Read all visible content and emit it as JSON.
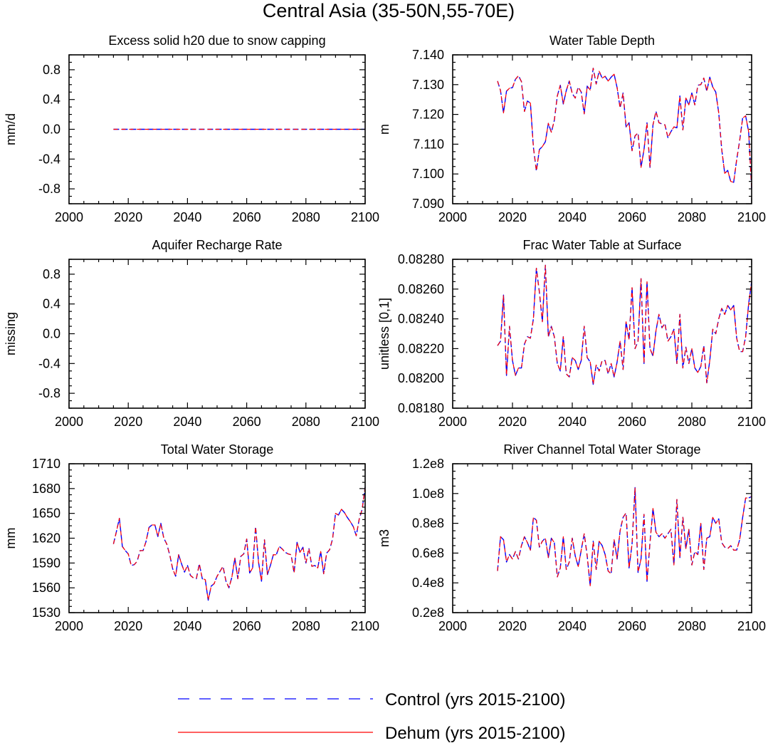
{
  "figure": {
    "title": "Central Asia (35-50N,55-70E)"
  },
  "legend": {
    "placement": "bottom-center",
    "items": [
      {
        "label": "Control (yrs 2015-2100)",
        "color": "#0000ff",
        "style": "dashed"
      },
      {
        "label": "Dehum (yrs 2015-2100)",
        "color": "#ff0000",
        "style": "solid"
      }
    ]
  },
  "chart_data": [
    {
      "type": "line",
      "title": "Excess solid h20 due to snow capping",
      "ylabel": "mm/d",
      "xlim": [
        2000,
        2100
      ],
      "ylim": [
        -1.0,
        1.0
      ],
      "xticks": [
        2000,
        2020,
        2040,
        2060,
        2080,
        2100
      ],
      "yticks": [
        -0.8,
        -0.4,
        0.0,
        0.4,
        0.8
      ],
      "ytick_labels": [
        "-0.8",
        "-0.4",
        "0.0",
        "0.4",
        "0.8"
      ],
      "x": [
        2015,
        2100
      ],
      "series": [
        {
          "name": "Control (yrs 2015-2100)",
          "values": [
            0,
            0
          ]
        },
        {
          "name": "Dehum (yrs 2015-2100)",
          "values": [
            0,
            0
          ]
        }
      ]
    },
    {
      "type": "line",
      "title": "Water Table Depth",
      "ylabel": "m",
      "xlim": [
        2000,
        2100
      ],
      "ylim": [
        7.09,
        7.14
      ],
      "xticks": [
        2000,
        2020,
        2040,
        2060,
        2080,
        2100
      ],
      "yticks": [
        7.09,
        7.1,
        7.11,
        7.12,
        7.13,
        7.14
      ],
      "ytick_labels": [
        "7.090",
        "7.100",
        "7.110",
        "7.120",
        "7.130",
        "7.140"
      ],
      "x_start": 2015,
      "series": [
        {
          "name": "Control (yrs 2015-2100)",
          "values": [
            7.1312,
            7.128,
            7.1205,
            7.1278,
            7.1288,
            7.129,
            7.1318,
            7.133,
            7.131,
            7.121,
            7.1245,
            7.1238,
            7.109,
            7.101,
            7.1082,
            7.1092,
            7.1108,
            7.117,
            7.114,
            7.118,
            7.1262,
            7.1298,
            7.1235,
            7.128,
            7.1312,
            7.127,
            7.1255,
            7.1292,
            7.1275,
            7.1202,
            7.1295,
            7.1282,
            7.1355,
            7.1302,
            7.1345,
            7.1322,
            7.1328,
            7.1312,
            7.1325,
            7.1335,
            7.129,
            7.1222,
            7.1272,
            7.1158,
            7.1172,
            7.1078,
            7.1128,
            7.1138,
            7.1022,
            7.1082,
            7.1172,
            7.1022,
            7.1165,
            7.121,
            7.1172,
            7.1168,
            7.1165,
            7.1122,
            7.1142,
            7.1158,
            7.1155,
            7.1262,
            7.1148,
            7.1255,
            7.1232,
            7.1272,
            7.1232,
            7.1298,
            7.13,
            7.1322,
            7.1278,
            7.1325,
            7.1292,
            7.1275,
            7.1205,
            7.1082,
            7.1002,
            7.1012,
            7.0975,
            7.0972,
            7.1048,
            7.1112,
            7.1188,
            7.1195,
            7.1142,
            7.0952
          ]
        },
        {
          "name": "Dehum (yrs 2015-2100)",
          "values": [
            7.1312,
            7.128,
            7.1205,
            7.1278,
            7.1288,
            7.129,
            7.1318,
            7.133,
            7.131,
            7.121,
            7.1245,
            7.1238,
            7.109,
            7.101,
            7.1082,
            7.1092,
            7.1108,
            7.117,
            7.114,
            7.118,
            7.1262,
            7.1298,
            7.1235,
            7.128,
            7.1312,
            7.127,
            7.1255,
            7.1292,
            7.1275,
            7.1202,
            7.1295,
            7.1282,
            7.1355,
            7.1302,
            7.1345,
            7.1322,
            7.1328,
            7.1312,
            7.1325,
            7.1335,
            7.129,
            7.1222,
            7.1272,
            7.1158,
            7.1172,
            7.1078,
            7.1128,
            7.1138,
            7.1022,
            7.1082,
            7.1172,
            7.1022,
            7.1165,
            7.121,
            7.1172,
            7.1168,
            7.1165,
            7.1122,
            7.1142,
            7.1158,
            7.1155,
            7.1262,
            7.1148,
            7.1255,
            7.1232,
            7.1272,
            7.1232,
            7.1298,
            7.13,
            7.1322,
            7.1278,
            7.1325,
            7.1292,
            7.1275,
            7.1205,
            7.1082,
            7.1002,
            7.1012,
            7.0975,
            7.0972,
            7.1048,
            7.1112,
            7.1188,
            7.1195,
            7.1142,
            7.0952
          ]
        }
      ]
    },
    {
      "type": "line",
      "title": "Aquifer Recharge Rate",
      "ylabel": "missing",
      "xlim": [
        2000,
        2100
      ],
      "ylim": [
        -1.0,
        1.0
      ],
      "xticks": [
        2000,
        2020,
        2040,
        2060,
        2080,
        2100
      ],
      "yticks": [
        -0.8,
        -0.4,
        0.0,
        0.4,
        0.8
      ],
      "ytick_labels": [
        "-0.8",
        "-0.4",
        "0.0",
        "0.4",
        "0.8"
      ],
      "series": []
    },
    {
      "type": "line",
      "title": "Frac Water Table at Surface",
      "ylabel": "unitless [0,1]",
      "xlim": [
        2000,
        2100
      ],
      "ylim": [
        0.0818,
        0.0828
      ],
      "xticks": [
        2000,
        2020,
        2040,
        2060,
        2080,
        2100
      ],
      "yticks": [
        0.0818,
        0.082,
        0.0822,
        0.0824,
        0.0826,
        0.0828
      ],
      "ytick_labels": [
        "0.08180",
        "0.08200",
        "0.08220",
        "0.08240",
        "0.08260",
        "0.08280"
      ],
      "x_start": 2015,
      "series": [
        {
          "name": "Control (yrs 2015-2100)",
          "values": [
            0.08222,
            0.08225,
            0.08256,
            0.08202,
            0.08235,
            0.08212,
            0.08202,
            0.08207,
            0.08207,
            0.08223,
            0.08228,
            0.08227,
            0.0824,
            0.08274,
            0.08258,
            0.08238,
            0.08276,
            0.08228,
            0.08235,
            0.08228,
            0.0821,
            0.08205,
            0.08228,
            0.08203,
            0.08201,
            0.08214,
            0.08212,
            0.08206,
            0.08212,
            0.08235,
            0.08214,
            0.08211,
            0.08196,
            0.08209,
            0.08205,
            0.08212,
            0.08212,
            0.08203,
            0.0821,
            0.08201,
            0.08211,
            0.08225,
            0.08206,
            0.08238,
            0.08226,
            0.08261,
            0.0822,
            0.08225,
            0.08267,
            0.0821,
            0.08265,
            0.0822,
            0.08215,
            0.08232,
            0.08243,
            0.08234,
            0.08237,
            0.08225,
            0.08228,
            0.08233,
            0.0821,
            0.08243,
            0.08207,
            0.08221,
            0.0821,
            0.0822,
            0.08207,
            0.08204,
            0.08208,
            0.08222,
            0.08197,
            0.08212,
            0.08233,
            0.0823,
            0.0824,
            0.08247,
            0.08243,
            0.08249,
            0.08246,
            0.08249,
            0.08227,
            0.08218,
            0.08218,
            0.08228,
            0.0825,
            0.08265
          ]
        },
        {
          "name": "Dehum (yrs 2015-2100)",
          "values": [
            0.08222,
            0.08225,
            0.08256,
            0.08202,
            0.08235,
            0.08212,
            0.08202,
            0.08207,
            0.08207,
            0.08223,
            0.08228,
            0.08227,
            0.0824,
            0.08274,
            0.08258,
            0.08238,
            0.08276,
            0.08228,
            0.08235,
            0.08228,
            0.0821,
            0.08205,
            0.08228,
            0.08203,
            0.08201,
            0.08214,
            0.08212,
            0.08206,
            0.08212,
            0.08235,
            0.08214,
            0.08211,
            0.08196,
            0.08209,
            0.08205,
            0.08212,
            0.08212,
            0.08203,
            0.0821,
            0.08201,
            0.08211,
            0.08225,
            0.08206,
            0.08238,
            0.08226,
            0.08261,
            0.0822,
            0.08225,
            0.08267,
            0.0821,
            0.08265,
            0.0822,
            0.08215,
            0.08232,
            0.08243,
            0.08234,
            0.08237,
            0.08225,
            0.08228,
            0.08233,
            0.0821,
            0.08243,
            0.08207,
            0.08221,
            0.0821,
            0.0822,
            0.08207,
            0.08204,
            0.08208,
            0.08222,
            0.08197,
            0.08212,
            0.08233,
            0.0823,
            0.0824,
            0.08247,
            0.08243,
            0.08249,
            0.08246,
            0.08249,
            0.08227,
            0.08218,
            0.08218,
            0.08228,
            0.0825,
            0.08265
          ]
        }
      ]
    },
    {
      "type": "line",
      "title": "Total Water Storage",
      "ylabel": "mm",
      "xlim": [
        2000,
        2100
      ],
      "ylim": [
        1530,
        1710
      ],
      "xticks": [
        2000,
        2020,
        2040,
        2060,
        2080,
        2100
      ],
      "yticks": [
        1530,
        1560,
        1590,
        1620,
        1650,
        1680,
        1710
      ],
      "ytick_labels": [
        "1530",
        "1560",
        "1590",
        "1620",
        "1650",
        "1680",
        "1710"
      ],
      "x_start": 2015,
      "series": [
        {
          "name": "Control (yrs 2015-2100)",
          "values": [
            1613,
            1628,
            1644,
            1610,
            1605,
            1601,
            1587,
            1588,
            1592,
            1605,
            1605,
            1616,
            1633,
            1636,
            1636,
            1622,
            1638,
            1620,
            1613,
            1600,
            1583,
            1574,
            1600,
            1589,
            1579,
            1587,
            1575,
            1572,
            1571,
            1589,
            1571,
            1570,
            1545,
            1562,
            1565,
            1574,
            1580,
            1586,
            1568,
            1560,
            1573,
            1596,
            1571,
            1598,
            1601,
            1619,
            1578,
            1584,
            1634,
            1591,
            1568,
            1618,
            1576,
            1587,
            1600,
            1600,
            1610,
            1607,
            1603,
            1601,
            1600,
            1578,
            1615,
            1603,
            1609,
            1590,
            1608,
            1586,
            1587,
            1584,
            1604,
            1577,
            1602,
            1606,
            1619,
            1650,
            1648,
            1655,
            1651,
            1645,
            1640,
            1634,
            1623,
            1643,
            1655,
            1682
          ]
        },
        {
          "name": "Dehum (yrs 2015-2100)",
          "values": [
            1613,
            1628,
            1644,
            1610,
            1605,
            1601,
            1587,
            1588,
            1592,
            1605,
            1605,
            1616,
            1633,
            1636,
            1636,
            1622,
            1638,
            1620,
            1613,
            1600,
            1583,
            1574,
            1600,
            1589,
            1579,
            1587,
            1575,
            1572,
            1571,
            1589,
            1571,
            1570,
            1545,
            1562,
            1565,
            1574,
            1580,
            1586,
            1568,
            1560,
            1573,
            1596,
            1571,
            1598,
            1601,
            1619,
            1578,
            1584,
            1634,
            1591,
            1568,
            1618,
            1576,
            1587,
            1600,
            1600,
            1610,
            1607,
            1603,
            1601,
            1600,
            1578,
            1615,
            1603,
            1609,
            1590,
            1608,
            1586,
            1587,
            1584,
            1604,
            1577,
            1602,
            1606,
            1619,
            1650,
            1648,
            1655,
            1651,
            1645,
            1640,
            1634,
            1623,
            1643,
            1655,
            1682
          ]
        }
      ]
    },
    {
      "type": "line",
      "title": "River Channel Total Water Storage",
      "ylabel": "m3",
      "xlim": [
        2000,
        2100
      ],
      "ylim": [
        20000000,
        120000000
      ],
      "xticks": [
        2000,
        2020,
        2040,
        2060,
        2080,
        2100
      ],
      "yticks": [
        20000000,
        40000000,
        60000000,
        80000000,
        100000000,
        120000000
      ],
      "ytick_labels": [
        "0.2e8",
        "0.4e8",
        "0.6e8",
        "0.8e8",
        "1.0e8",
        "1.2e8"
      ],
      "x_start": 2015,
      "series": [
        {
          "name": "Control (yrs 2015-2100)",
          "values": [
            48000000,
            71000000,
            69000000,
            54000000,
            59000000,
            56000000,
            61000000,
            56000000,
            65000000,
            71000000,
            67000000,
            62000000,
            84000000,
            82000000,
            64000000,
            68000000,
            70000000,
            57000000,
            70000000,
            67000000,
            44000000,
            50000000,
            71000000,
            49000000,
            54000000,
            70000000,
            58000000,
            51000000,
            62000000,
            73000000,
            58000000,
            38000000,
            68000000,
            49000000,
            68000000,
            65000000,
            59000000,
            48000000,
            46000000,
            69000000,
            56000000,
            75000000,
            84000000,
            87000000,
            50000000,
            66000000,
            104000000,
            47000000,
            56000000,
            86000000,
            41000000,
            67000000,
            90000000,
            74000000,
            71000000,
            73000000,
            70000000,
            73000000,
            76000000,
            52000000,
            96000000,
            57000000,
            84000000,
            63000000,
            76000000,
            52000000,
            61000000,
            59000000,
            80000000,
            49000000,
            70000000,
            71000000,
            84000000,
            80000000,
            83000000,
            67000000,
            64000000,
            63000000,
            65000000,
            62000000,
            62000000,
            69000000,
            84000000,
            97000000,
            97000000,
            98000000
          ]
        },
        {
          "name": "Dehum (yrs 2015-2100)",
          "values": [
            48000000,
            71000000,
            69000000,
            54000000,
            59000000,
            56000000,
            61000000,
            56000000,
            65000000,
            71000000,
            67000000,
            62000000,
            84000000,
            82000000,
            64000000,
            68000000,
            70000000,
            57000000,
            70000000,
            67000000,
            44000000,
            50000000,
            71000000,
            49000000,
            54000000,
            70000000,
            58000000,
            51000000,
            62000000,
            73000000,
            58000000,
            38000000,
            68000000,
            49000000,
            68000000,
            65000000,
            59000000,
            48000000,
            46000000,
            69000000,
            56000000,
            75000000,
            84000000,
            87000000,
            50000000,
            66000000,
            104000000,
            47000000,
            56000000,
            86000000,
            41000000,
            67000000,
            90000000,
            74000000,
            71000000,
            73000000,
            70000000,
            73000000,
            76000000,
            52000000,
            96000000,
            57000000,
            84000000,
            63000000,
            76000000,
            52000000,
            61000000,
            59000000,
            80000000,
            49000000,
            70000000,
            71000000,
            84000000,
            80000000,
            83000000,
            67000000,
            64000000,
            63000000,
            65000000,
            62000000,
            62000000,
            69000000,
            84000000,
            97000000,
            97000000,
            98000000
          ]
        }
      ]
    }
  ]
}
